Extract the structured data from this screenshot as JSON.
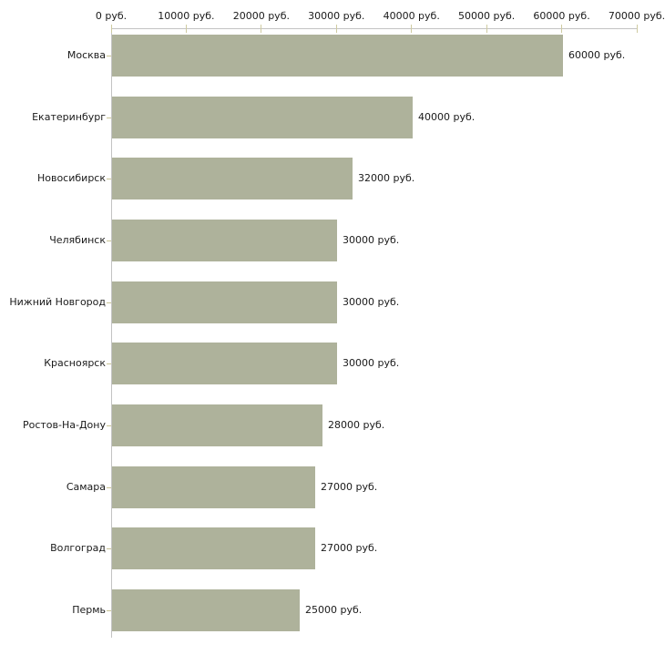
{
  "chart_data": {
    "type": "bar",
    "orientation": "horizontal",
    "title": "",
    "xlabel": "",
    "ylabel": "",
    "grid": false,
    "legend": null,
    "xlim": [
      0,
      70000
    ],
    "x_ticks": [
      0,
      10000,
      20000,
      30000,
      40000,
      50000,
      60000,
      70000
    ],
    "x_tick_labels": [
      "0 руб.",
      "10000 руб.",
      "20000 руб.",
      "30000 руб.",
      "40000 руб.",
      "50000 руб.",
      "60000 руб.",
      "70000 руб."
    ],
    "categories": [
      "Москва",
      "Екатеринбург",
      "Новосибирск",
      "Челябинск",
      "Нижний Новгород",
      "Красноярск",
      "Ростов-На-Дону",
      "Самара",
      "Волгоград",
      "Пермь"
    ],
    "values": [
      60000,
      40000,
      32000,
      30000,
      30000,
      30000,
      28000,
      27000,
      27000,
      25000
    ],
    "value_labels": [
      "60000 руб.",
      "40000 руб.",
      "32000 руб.",
      "30000 руб.",
      "30000 руб.",
      "30000 руб.",
      "28000 руб.",
      "27000 руб.",
      "27000 руб.",
      "25000 руб."
    ],
    "colors": {
      "bar": "#aeb29b",
      "axis": "#c3c3c3",
      "axis_tick": "#cfcba1",
      "category_tick": "#c9c496",
      "text": "#1a1a1a",
      "background": "#ffffff"
    }
  }
}
